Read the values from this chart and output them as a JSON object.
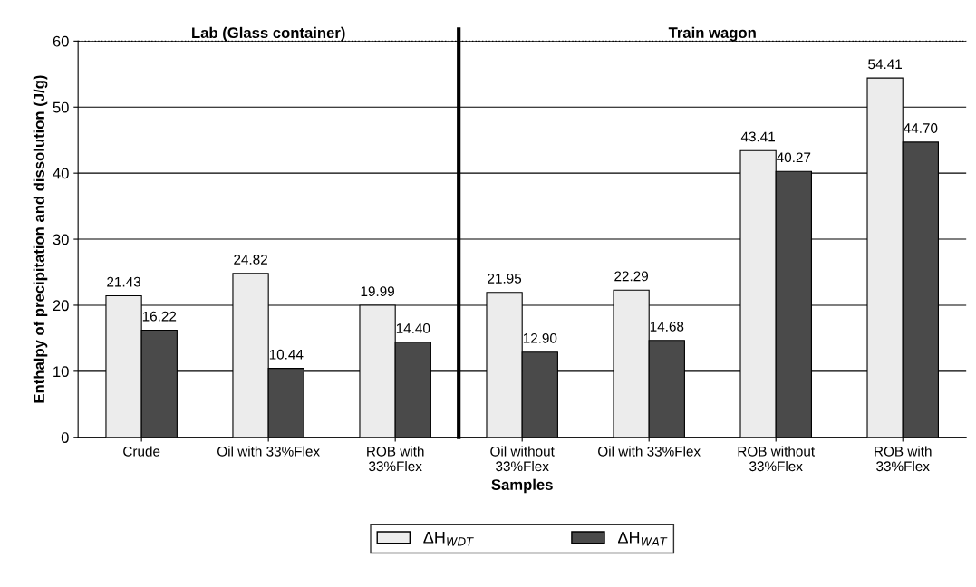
{
  "chart_data": [
    {
      "type": "bar",
      "title": "Lab (Glass container)",
      "ylabel": "Enthalpy of precipitation and dissolution (J/g)",
      "categories": [
        "Crude",
        "Oil with 33%Flex",
        "ROB with\n33%Flex"
      ],
      "series": [
        {
          "name": "ΔH$_{WDT}$",
          "color": "#ececec",
          "values": [
            21.43,
            24.82,
            19.99
          ],
          "value_labels": [
            "21.43",
            "24.82",
            "19.99"
          ]
        },
        {
          "name": "ΔH$_{WAT}$",
          "color": "#4a4a4a",
          "values": [
            16.22,
            10.44,
            14.4
          ],
          "value_labels": [
            "16.22",
            "10.44",
            "14.40"
          ]
        }
      ],
      "ylim": [
        0,
        60
      ],
      "yticks": [
        0,
        10,
        20,
        30,
        40,
        50,
        60
      ],
      "grid": "y",
      "legend": "bottom"
    },
    {
      "type": "bar",
      "title": "Train wagon",
      "xlabel": "Samples",
      "categories": [
        "Oil without\n33%Flex",
        "Oil with 33%Flex",
        "ROB without\n33%Flex",
        "ROB with\n33%Flex"
      ],
      "series": [
        {
          "color": "#ececec",
          "values": [
            21.95,
            22.29,
            43.41,
            54.41
          ],
          "value_labels": [
            "21.95",
            "22.29",
            "43.41",
            "54.41"
          ]
        },
        {
          "color": "#4a4a4a",
          "values": [
            12.9,
            14.68,
            40.27,
            44.7
          ],
          "value_labels": [
            "12.90",
            "14.68",
            "40.27",
            "44.70"
          ]
        }
      ],
      "ylim": [
        0,
        60
      ],
      "yticks": [
        0,
        10,
        20,
        30,
        40,
        50,
        60
      ],
      "grid": "y",
      "tick_labels": "x"
    }
  ]
}
